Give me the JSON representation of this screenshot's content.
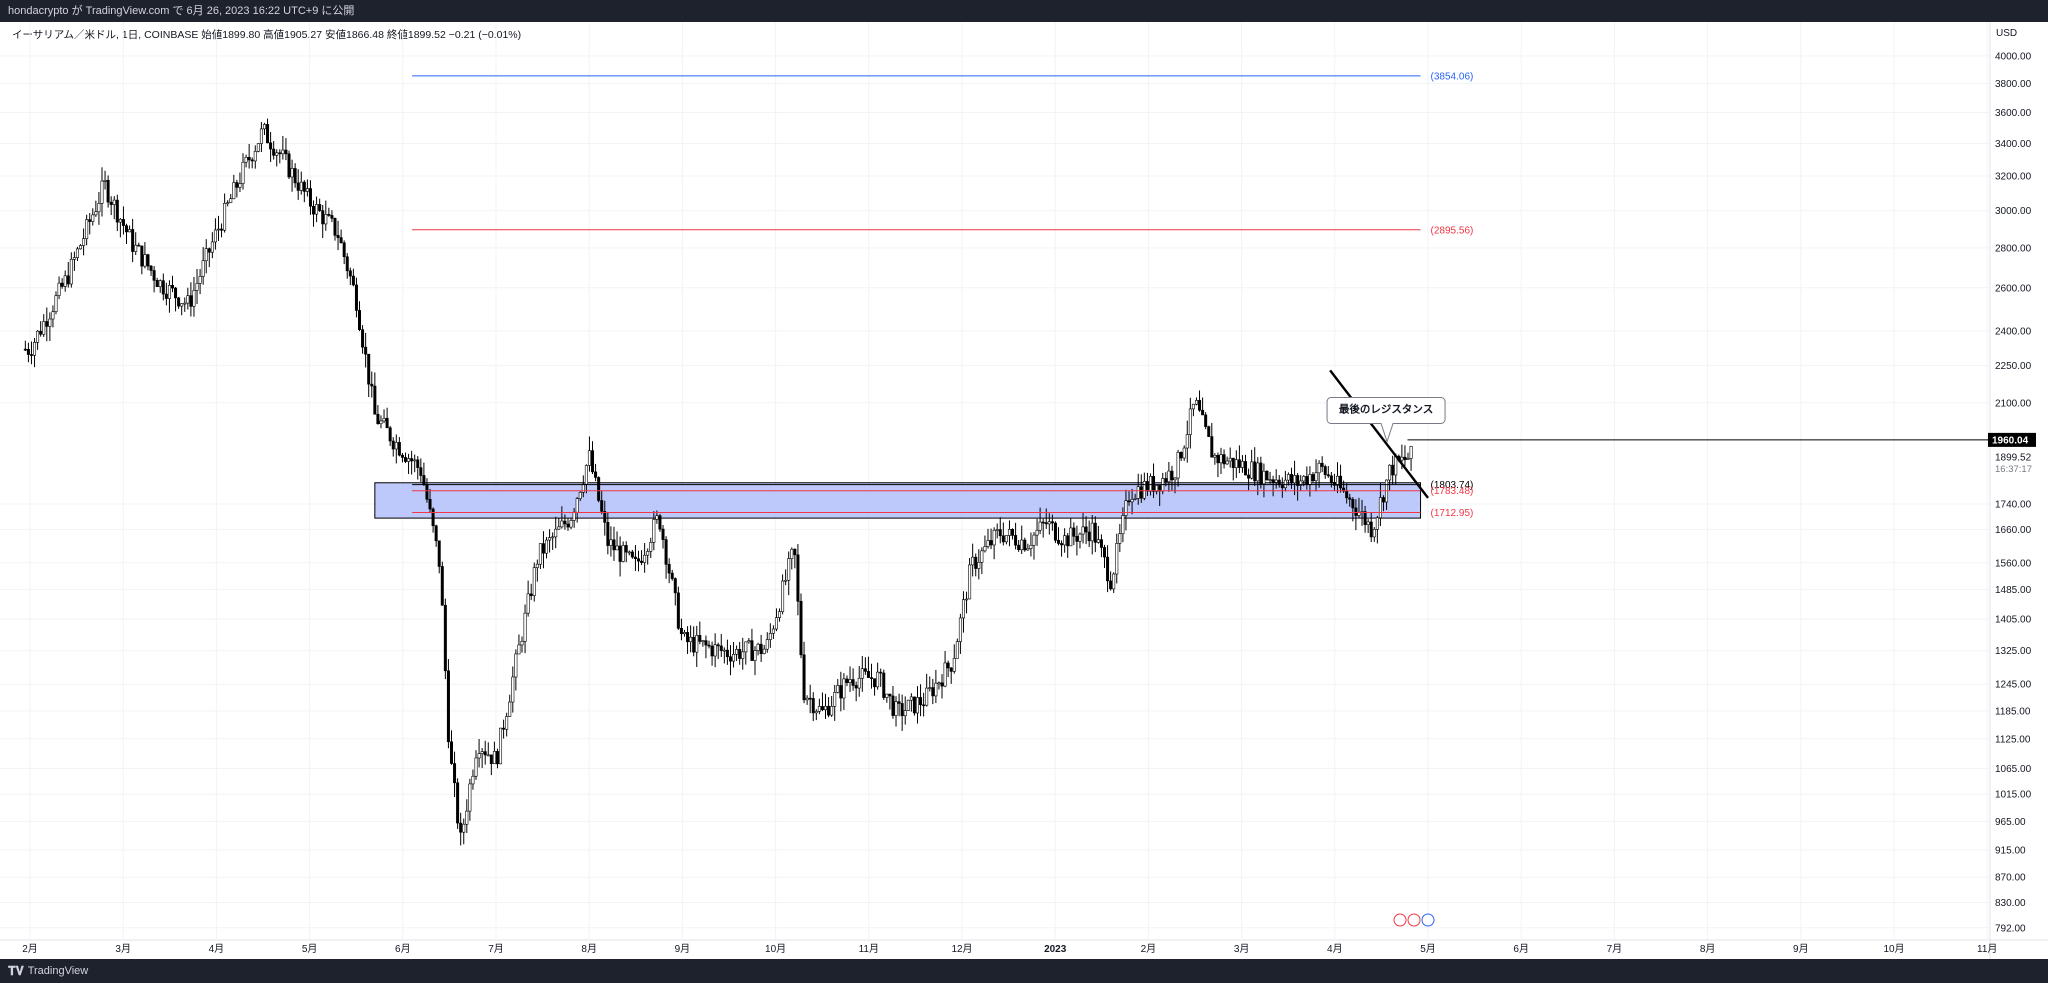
{
  "header": {
    "publish_text": "hondacrypto が TradingView.com で 6月 26, 2023 16:22 UTC+9 に公開"
  },
  "legend": {
    "text": "イーサリアム／米ドル, 1日, COINBASE  始値1899.80  高値1905.27  安値1866.48  終値1899.52  −0.21 (−0.01%)"
  },
  "footer": {
    "brand_label": "TradingView"
  },
  "colors": {
    "blue_line": "#2962ff",
    "red_line": "#f23645",
    "zone_fill": "#aebcfa",
    "candle": "#000000"
  },
  "chart_data": {
    "type": "candlestick",
    "symbol": "ETH/USD",
    "timeframe": "1日",
    "exchange": "COINBASE",
    "ohlc_last": {
      "open": 1899.8,
      "high": 1905.27,
      "low": 1866.48,
      "close": 1899.52,
      "change": -0.21,
      "change_pct": -0.01
    },
    "price_scale": "log",
    "ylim": [
      780,
      4150
    ],
    "yaxis_unit": "USD",
    "yticks": [
      "4000.00",
      "3800.00",
      "3600.00",
      "3400.00",
      "3200.00",
      "3000.00",
      "2800.00",
      "2600.00",
      "2400.00",
      "2250.00",
      "2100.00",
      "1740.00",
      "1660.00",
      "1560.00",
      "1485.00",
      "1405.00",
      "1325.00",
      "1245.00",
      "1185.00",
      "1125.00",
      "1065.00",
      "1015.00",
      "965.00",
      "915.00",
      "870.00",
      "830.00",
      "792.00"
    ],
    "xticks": [
      "2月",
      "3月",
      "4月",
      "5月",
      "6月",
      "7月",
      "8月",
      "9月",
      "10月",
      "11月",
      "12月",
      "2023",
      "2月",
      "3月",
      "4月",
      "5月",
      "6月",
      "7月",
      "8月",
      "9月",
      "10月",
      "11月"
    ],
    "anchors": [
      {
        "m": 0,
        "p": 2320
      },
      {
        "m": 0.4,
        "p": 2650
      },
      {
        "m": 0.8,
        "p": 3150
      },
      {
        "m": 1.1,
        "p": 2820
      },
      {
        "m": 1.4,
        "p": 2620
      },
      {
        "m": 1.7,
        "p": 2520
      },
      {
        "m": 2.0,
        "p": 2880
      },
      {
        "m": 2.3,
        "p": 3250
      },
      {
        "m": 2.5,
        "p": 3480
      },
      {
        "m": 2.7,
        "p": 3320
      },
      {
        "m": 3.0,
        "p": 3050
      },
      {
        "m": 3.3,
        "p": 2880
      },
      {
        "m": 3.5,
        "p": 2550
      },
      {
        "m": 3.7,
        "p": 2050
      },
      {
        "m": 3.9,
        "p": 1960
      },
      {
        "m": 4.2,
        "p": 1850
      },
      {
        "m": 4.4,
        "p": 1550
      },
      {
        "m": 4.5,
        "p": 1100
      },
      {
        "m": 4.62,
        "p": 930
      },
      {
        "m": 4.8,
        "p": 1120
      },
      {
        "m": 5.0,
        "p": 1080
      },
      {
        "m": 5.2,
        "p": 1280
      },
      {
        "m": 5.45,
        "p": 1580
      },
      {
        "m": 5.8,
        "p": 1700
      },
      {
        "m": 6.0,
        "p": 1900
      },
      {
        "m": 6.2,
        "p": 1620
      },
      {
        "m": 6.5,
        "p": 1550
      },
      {
        "m": 6.75,
        "p": 1700
      },
      {
        "m": 7.0,
        "p": 1350
      },
      {
        "m": 7.5,
        "p": 1320
      },
      {
        "m": 7.9,
        "p": 1330
      },
      {
        "m": 8.2,
        "p": 1600
      },
      {
        "m": 8.3,
        "p": 1230
      },
      {
        "m": 8.5,
        "p": 1180
      },
      {
        "m": 8.8,
        "p": 1260
      },
      {
        "m": 9.1,
        "p": 1260
      },
      {
        "m": 9.3,
        "p": 1180
      },
      {
        "m": 9.6,
        "p": 1210
      },
      {
        "m": 9.9,
        "p": 1300
      },
      {
        "m": 10.1,
        "p": 1550
      },
      {
        "m": 10.4,
        "p": 1650
      },
      {
        "m": 10.7,
        "p": 1620
      },
      {
        "m": 10.9,
        "p": 1680
      },
      {
        "m": 11.1,
        "p": 1630
      },
      {
        "m": 11.4,
        "p": 1660
      },
      {
        "m": 11.6,
        "p": 1510
      },
      {
        "m": 11.8,
        "p": 1780
      },
      {
        "m": 12.1,
        "p": 1810
      },
      {
        "m": 12.3,
        "p": 1860
      },
      {
        "m": 12.5,
        "p": 2100
      },
      {
        "m": 12.7,
        "p": 1900
      },
      {
        "m": 13.0,
        "p": 1870
      },
      {
        "m": 13.3,
        "p": 1830
      },
      {
        "m": 13.6,
        "p": 1810
      },
      {
        "m": 13.85,
        "p": 1860
      },
      {
        "m": 14.2,
        "p": 1740
      },
      {
        "m": 14.4,
        "p": 1660
      },
      {
        "m": 14.6,
        "p": 1860
      },
      {
        "m": 14.8,
        "p": 1900
      }
    ],
    "horizontal_lines": [
      {
        "price": 3854.06,
        "label": "(3854.06)",
        "color": "blue"
      },
      {
        "price": 2895.56,
        "label": "(2895.56)",
        "color": "red"
      },
      {
        "price": 1803.74,
        "label": "(1803.74)",
        "color": "black"
      },
      {
        "price": 1783.48,
        "label": "(1783.48)",
        "color": "red"
      },
      {
        "price": 1712.95,
        "label": "(1712.95)",
        "color": "red"
      },
      {
        "price": 1960.04,
        "label": "1960.04",
        "color": "black"
      }
    ],
    "zone": {
      "top": 1810,
      "bottom": 1695
    },
    "trendline": {
      "from": {
        "m": 13.95,
        "p": 2230
      },
      "to": {
        "m": 15.0,
        "p": 1760
      }
    },
    "annotation": {
      "text": "最後のレジスタンス"
    },
    "price_labels": {
      "last_price": "1960.04",
      "current_price": "1899.52",
      "countdown": "16:37:17"
    }
  }
}
